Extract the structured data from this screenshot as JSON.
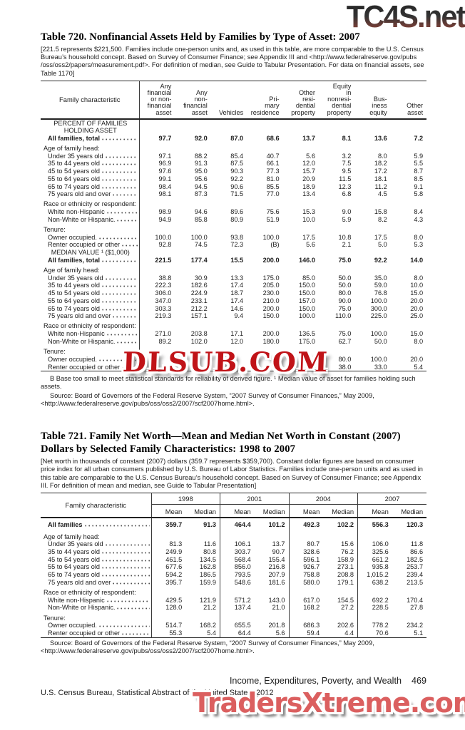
{
  "watermarks": {
    "top": "TC4S.net",
    "middle": "DLSUB.COM",
    "bottom": "TradersXtreme.com"
  },
  "table720": {
    "title": "Table 720. Nonfinancial Assets Held by Families by Type of Asset: 2007",
    "headnote": "[221.5 represents $221,500. Families include one-person units and, as used in this table, are more comparable to the U.S. Census Bureau’s household concept. Based on Survey of Consumer Finance; see Appendix III and <http://www.federalreserve.gov/pubs /oss/oss2/papers/measurement.pdf>. For definition of median, see Guide to Tabular Presentation. For data on financial assets, see Table 1170]",
    "stub_header": "Family characteristic",
    "col_headers": [
      "Any\nfinancial\nor non-\nfinancial\nasset",
      "Any\nnon-\nfinancial\nasset",
      "Vehicles",
      "Pri-\nmary\nresidence",
      "Other\nresi-\ndential\nproperty",
      "Equity\nin\nnonresi-\ndential\nproperty",
      "Bus-\niness\nequity",
      "Other\nasset"
    ],
    "rows": [
      {
        "type": "section",
        "label": "PERCENT OF FAMILIES\nHOLDING ASSET"
      },
      {
        "type": "data",
        "bold": true,
        "label": "All families, total",
        "values": [
          "97.7",
          "92.0",
          "87.0",
          "68.6",
          "13.7",
          "8.1",
          "13.6",
          "7.2"
        ]
      },
      {
        "type": "spacer"
      },
      {
        "type": "group",
        "label": "Age of family head:"
      },
      {
        "type": "data",
        "label": "Under 35 years old",
        "values": [
          "97.1",
          "88.2",
          "85.4",
          "40.7",
          "5.6",
          "3.2",
          "8.0",
          "5.9"
        ]
      },
      {
        "type": "data",
        "label": "35 to 44 years old",
        "values": [
          "96.9",
          "91.3",
          "87.5",
          "66.1",
          "12.0",
          "7.5",
          "18.2",
          "5.5"
        ]
      },
      {
        "type": "data",
        "label": "45 to 54 years old",
        "values": [
          "97.6",
          "95.0",
          "90.3",
          "77.3",
          "15.7",
          "9.5",
          "17.2",
          "8.7"
        ]
      },
      {
        "type": "data",
        "label": "55 to 64 years old",
        "values": [
          "99.1",
          "95.6",
          "92.2",
          "81.0",
          "20.9",
          "11.5",
          "18.1",
          "8.5"
        ]
      },
      {
        "type": "data",
        "label": "65 to 74 years old",
        "values": [
          "98.4",
          "94.5",
          "90.6",
          "85.5",
          "18.9",
          "12.3",
          "11.2",
          "9.1"
        ]
      },
      {
        "type": "data",
        "label": "75 years old and over",
        "values": [
          "98.1",
          "87.3",
          "71.5",
          "77.0",
          "13.4",
          "6.8",
          "4.5",
          "5.8"
        ]
      },
      {
        "type": "spacer"
      },
      {
        "type": "group",
        "label": "Race or ethnicity or respondent:"
      },
      {
        "type": "data",
        "label": "White non-Hispanic",
        "values": [
          "98.9",
          "94.6",
          "89.6",
          "75.6",
          "15.3",
          "9.0",
          "15.8",
          "8.4"
        ]
      },
      {
        "type": "data",
        "label": "Non-White or Hispanic.",
        "values": [
          "94.9",
          "85.8",
          "80.9",
          "51.9",
          "10.0",
          "5.9",
          "8.2",
          "4.3"
        ]
      },
      {
        "type": "spacer"
      },
      {
        "type": "group",
        "label": "Tenure:"
      },
      {
        "type": "data",
        "label": "Owner occupied.",
        "values": [
          "100.0",
          "100.0",
          "93.8",
          "100.0",
          "17.5",
          "10.8",
          "17.5",
          "8.0"
        ]
      },
      {
        "type": "data",
        "label": "Renter occupied or other",
        "values": [
          "92.8",
          "74.5",
          "72.3",
          "(B)",
          "5.6",
          "2.1",
          "5.0",
          "5.3"
        ]
      },
      {
        "type": "section",
        "label": "MEDIAN VALUE ¹ ($1,000)"
      },
      {
        "type": "data",
        "bold": true,
        "label": "All families, total",
        "values": [
          "221.5",
          "177.4",
          "15.5",
          "200.0",
          "146.0",
          "75.0",
          "92.2",
          "14.0"
        ]
      },
      {
        "type": "spacer"
      },
      {
        "type": "group",
        "label": "Age of family head:"
      },
      {
        "type": "data",
        "label": "Under 35 years old",
        "values": [
          "38.8",
          "30.9",
          "13.3",
          "175.0",
          "85.0",
          "50.0",
          "35.0",
          "8.0"
        ]
      },
      {
        "type": "data",
        "label": "35 to 44 years old",
        "values": [
          "222.3",
          "182.6",
          "17.4",
          "205.0",
          "150.0",
          "50.0",
          "59.0",
          "10.0"
        ]
      },
      {
        "type": "data",
        "label": "45 to 54 years old",
        "values": [
          "306.0",
          "224.9",
          "18.7",
          "230.0",
          "150.0",
          "80.0",
          "76.8",
          "15.0"
        ]
      },
      {
        "type": "data",
        "label": "55 to 64 years old",
        "values": [
          "347.0",
          "233.1",
          "17.4",
          "210.0",
          "157.0",
          "90.0",
          "100.0",
          "20.0"
        ]
      },
      {
        "type": "data",
        "label": "65 to 74 years old",
        "values": [
          "303.3",
          "212.2",
          "14.6",
          "200.0",
          "150.0",
          "75.0",
          "300.0",
          "20.0"
        ]
      },
      {
        "type": "data",
        "label": "75 years old and over",
        "values": [
          "219.3",
          "157.1",
          "9.4",
          "150.0",
          "100.0",
          "110.0",
          "225.0",
          "25.0"
        ]
      },
      {
        "type": "spacer"
      },
      {
        "type": "group",
        "label": "Race or ethnicity of respondent:"
      },
      {
        "type": "data",
        "label": "White non-Hispanic",
        "values": [
          "271.0",
          "203.8",
          "17.1",
          "200.0",
          "136.5",
          "75.0",
          "100.0",
          "15.0"
        ]
      },
      {
        "type": "data",
        "label": "Non-White or Hispanic.",
        "values": [
          "89.2",
          "102.0",
          "12.0",
          "180.0",
          "175.0",
          "62.7",
          "50.0",
          "8.0"
        ]
      },
      {
        "type": "spacer"
      },
      {
        "type": "group",
        "label": "Tenure:"
      },
      {
        "type": "data",
        "label": "Owner occupied.",
        "values": [
          "",
          "",
          "",
          "",
          "",
          "80.0",
          "100.0",
          "20.0"
        ]
      },
      {
        "type": "data",
        "label": "Renter occupied or other",
        "values": [
          "",
          "",
          "",
          "",
          "",
          "38.0",
          "33.0",
          "5.4"
        ]
      }
    ],
    "footnote": "B Base too small to meet statistical standards for reliability of derived figure.   ¹ Median value of asset for families holding such assets.",
    "source": "Source: Board of Governors of the Federal Reserve System, “2007 Survey of Consumer Finances,” May 2009, <http://www.federalreserve.gov/pubs/oss/oss2/2007/scf2007home.html>."
  },
  "table721": {
    "title": "Table 721. Family Net Worth—Mean and Median Net Worth in Constant (2007) Dollars by Selected Family Characteristics: 1998 to 2007",
    "headnote": "[Net worth in thousands of constant (2007) dollars (359.7 represents $359,700). Constant dollar figures are based on consumer price index for all urban consumers published by U.S. Bureau of Labor Statistics. Families include one-person units and as used in this table are comparable to the U.S. Census Bureau’s household concept. Based on Survey of Consumer Finance; see Appendix III. For definition of mean and median, see Guide to Tabular Presentation]",
    "stub_header": "Family characteristic",
    "year_headers": [
      "1998",
      "2001",
      "2004",
      "2007"
    ],
    "sub_headers": [
      "Mean",
      "Median"
    ],
    "rows": [
      {
        "type": "data",
        "bold": true,
        "first": true,
        "label": "All families",
        "values": [
          "359.7",
          "91.3",
          "464.4",
          "101.2",
          "492.3",
          "102.2",
          "556.3",
          "120.3"
        ]
      },
      {
        "type": "spacer"
      },
      {
        "type": "group",
        "label": "Age of family head:"
      },
      {
        "type": "data",
        "label": "Under 35 years old",
        "values": [
          "81.3",
          "11.6",
          "106.1",
          "13.7",
          "80.7",
          "15.6",
          "106.0",
          "11.8"
        ]
      },
      {
        "type": "data",
        "label": "35 to 44 years old",
        "values": [
          "249.9",
          "80.8",
          "303.7",
          "90.7",
          "328.6",
          "76.2",
          "325.6",
          "86.6"
        ]
      },
      {
        "type": "data",
        "label": "45 to 54 years old",
        "values": [
          "461.5",
          "134.5",
          "568.4",
          "155.4",
          "596.1",
          "158.9",
          "661.2",
          "182.5"
        ]
      },
      {
        "type": "data",
        "label": "55 to 64 years old",
        "values": [
          "677.6",
          "162.8",
          "856.0",
          "216.8",
          "926.7",
          "273.1",
          "935.8",
          "253.7"
        ]
      },
      {
        "type": "data",
        "label": "65 to 74 years old",
        "values": [
          "594.2",
          "186.5",
          "793.5",
          "207.9",
          "758.8",
          "208.8",
          "1,015.2",
          "239.4"
        ]
      },
      {
        "type": "data",
        "label": "75 years old and over",
        "values": [
          "395.7",
          "159.9",
          "548.6",
          "181.6",
          "580.0",
          "179.1",
          "638.2",
          "213.5"
        ]
      },
      {
        "type": "spacer"
      },
      {
        "type": "group",
        "label": "Race or ethnicity of respondent:"
      },
      {
        "type": "data",
        "label": "White non-Hispanic",
        "values": [
          "429.5",
          "121.9",
          "571.2",
          "143.0",
          "617.0",
          "154.5",
          "692.2",
          "170.4"
        ]
      },
      {
        "type": "data",
        "label": "Non-White or Hispanic.",
        "values": [
          "128.0",
          "21.2",
          "137.4",
          "21.0",
          "168.2",
          "27.2",
          "228.5",
          "27.8"
        ]
      },
      {
        "type": "spacer"
      },
      {
        "type": "group",
        "label": "Tenure:"
      },
      {
        "type": "data",
        "label": "Owner occupied.",
        "values": [
          "514.7",
          "168.2",
          "655.5",
          "201.8",
          "686.3",
          "202.6",
          "778.2",
          "234.2"
        ]
      },
      {
        "type": "data",
        "label": "Renter occupied or other",
        "values": [
          "55.3",
          "5.4",
          "64.4",
          "5.6",
          "59.4",
          "4.4",
          "70.6",
          "5.1"
        ]
      }
    ],
    "source": "Source: Board of Governors of the Federal Reserve System, “2007 Survey of Consumer Finances,” May 2009, <http://www.federalreserve.gov/pubs/oss/oss2/2007/scf2007home.html>."
  },
  "footer": {
    "running_head": "Income, Expenditures, Poverty, and Wealth",
    "page_number": "469",
    "imprint": "U.S. Census Bureau, Statistical Abstract of the United States: 2012"
  }
}
